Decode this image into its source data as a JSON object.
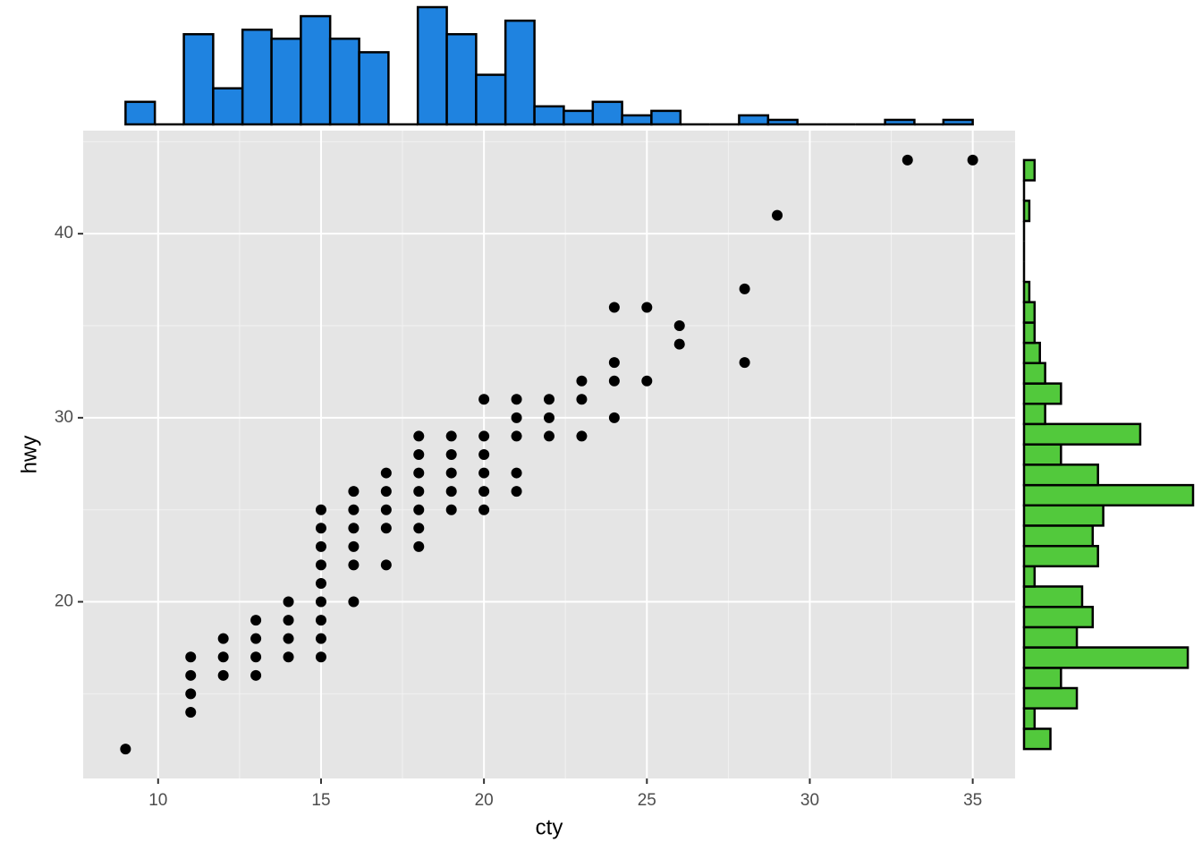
{
  "chart_data": [
    {
      "type": "scatter",
      "x_label": "cty",
      "y_label": "hwy",
      "color": "#000000",
      "grid": true,
      "x": [
        9,
        11,
        11,
        11,
        11,
        12,
        12,
        12,
        13,
        13,
        13,
        13,
        14,
        14,
        14,
        14,
        15,
        15,
        15,
        15,
        15,
        15,
        15,
        15,
        15,
        16,
        16,
        16,
        16,
        16,
        16,
        17,
        17,
        17,
        17,
        17,
        18,
        18,
        18,
        18,
        18,
        18,
        18,
        19,
        19,
        19,
        19,
        19,
        20,
        20,
        20,
        20,
        20,
        20,
        21,
        21,
        21,
        21,
        21,
        22,
        22,
        22,
        23,
        23,
        23,
        24,
        24,
        24,
        24,
        25,
        25,
        26,
        26,
        28,
        28,
        29,
        33,
        35
      ],
      "y": [
        12,
        14,
        15,
        16,
        17,
        16,
        17,
        18,
        16,
        17,
        18,
        19,
        17,
        18,
        19,
        20,
        17,
        18,
        19,
        20,
        21,
        22,
        23,
        24,
        25,
        20,
        22,
        23,
        24,
        25,
        26,
        22,
        24,
        25,
        26,
        27,
        23,
        24,
        25,
        26,
        27,
        28,
        29,
        25,
        26,
        27,
        28,
        29,
        25,
        26,
        27,
        28,
        29,
        31,
        26,
        27,
        29,
        30,
        31,
        29,
        30,
        31,
        29,
        31,
        32,
        30,
        32,
        33,
        36,
        32,
        36,
        34,
        35,
        33,
        37,
        41,
        44,
        44
      ],
      "xlim": [
        7.7,
        36.3
      ],
      "ylim": [
        10.4,
        45.6
      ],
      "xticks": [
        10,
        15,
        20,
        25,
        30,
        35
      ],
      "yticks": [
        20,
        30,
        40
      ]
    },
    {
      "type": "histogram",
      "orientation": "vertical",
      "color": "#1f83e0",
      "bins": [
        9,
        9.9,
        10.79,
        11.69,
        12.59,
        13.48,
        14.38,
        15.28,
        16.17,
        17.07,
        17.97,
        18.86,
        19.76,
        20.66,
        21.55,
        22.45,
        23.34,
        24.24,
        25.14,
        26.03,
        26.93,
        27.83,
        28.72,
        29.62,
        30.52,
        31.41,
        32.31,
        33.21,
        34.1,
        35
      ],
      "values": [
        5,
        0,
        20,
        8,
        21,
        19,
        24,
        19,
        16,
        0,
        26,
        20,
        11,
        23,
        4,
        3,
        5,
        2,
        3,
        0,
        0,
        2,
        1,
        0,
        0,
        0,
        1,
        0,
        1
      ]
    },
    {
      "type": "histogram",
      "orientation": "horizontal",
      "color": "#52c93c",
      "bins": [
        12,
        13.1,
        14.21,
        15.31,
        16.41,
        17.52,
        18.62,
        19.72,
        20.83,
        21.93,
        23.03,
        24.14,
        25.24,
        26.34,
        27.45,
        28.55,
        29.66,
        30.76,
        31.86,
        32.97,
        34.07,
        35.17,
        36.28,
        37.38,
        38.48,
        39.59,
        40.69,
        41.79,
        42.9,
        44
      ],
      "values": [
        5,
        2,
        10,
        7,
        31,
        10,
        13,
        11,
        2,
        14,
        13,
        15,
        32,
        14,
        7,
        22,
        4,
        7,
        4,
        3,
        2,
        2,
        1,
        0,
        0,
        0,
        1,
        0,
        2
      ]
    }
  ]
}
